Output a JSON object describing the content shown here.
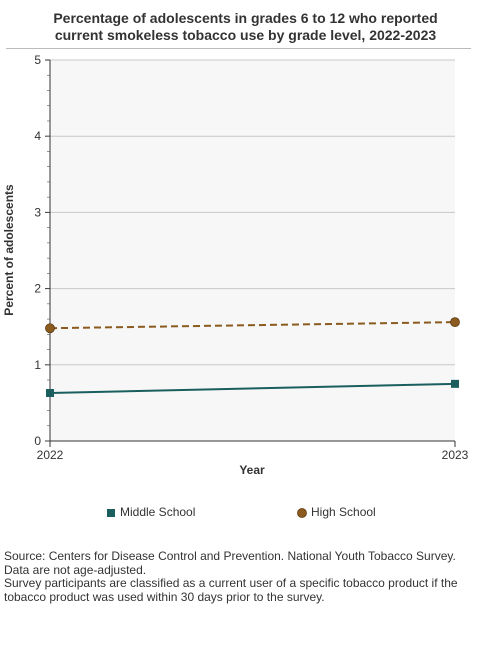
{
  "title_line1": "Percentage of adolescents in grades 6 to 12 who reported",
  "title_line2": "current smokeless tobacco use by grade level, 2022-2023",
  "chart_data": {
    "type": "line",
    "x": [
      "2022",
      "2023"
    ],
    "series": [
      {
        "name": "Middle School",
        "values": [
          0.63,
          0.75
        ],
        "color": "#1a5e5e",
        "marker": "square",
        "dash": "solid"
      },
      {
        "name": "High School",
        "values": [
          1.48,
          1.56
        ],
        "color": "#8b5a1e",
        "marker": "circle",
        "dash": "dashed"
      }
    ],
    "xlabel": "Year",
    "ylabel": "Percent of adolescents",
    "ylim": [
      0,
      5
    ],
    "yticks": [
      0,
      1,
      2,
      3,
      4,
      5
    ],
    "grid": true,
    "legend_position": "bottom"
  },
  "source_lines": [
    "Source: Centers for Disease Control and Prevention. National Youth Tobacco Survey.",
    "Data are not age-adjusted.",
    "Survey participants are classified as a current user of a specific tobacco product if the",
    "tobacco product was used within 30 days prior to the survey."
  ]
}
